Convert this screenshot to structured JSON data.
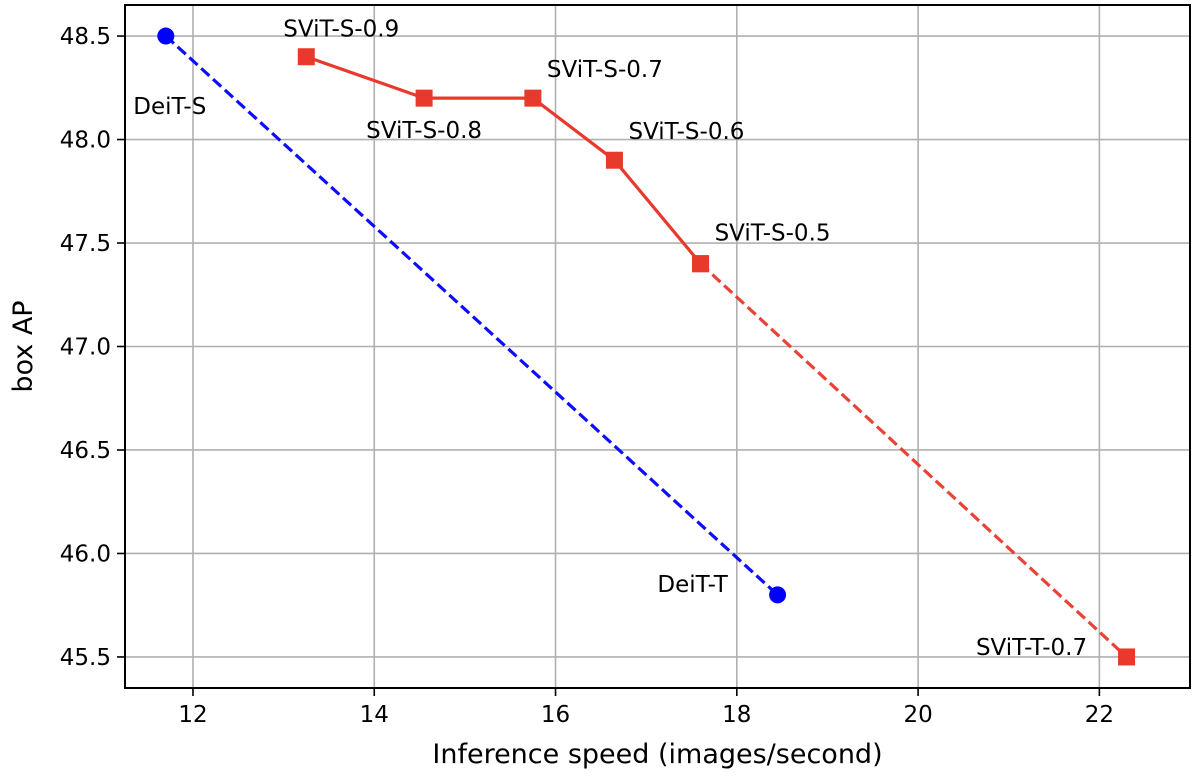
{
  "chart_data": {
    "type": "line",
    "xlabel": "Inference speed (images/second)",
    "ylabel": "box AP",
    "xlim": [
      11.25,
      23.0
    ],
    "ylim": [
      45.35,
      48.65
    ],
    "xticks": [
      12,
      14,
      16,
      18,
      20,
      22
    ],
    "yticks": [
      45.5,
      46.0,
      46.5,
      47.0,
      47.5,
      48.0,
      48.5
    ],
    "xtick_labels": [
      "12",
      "14",
      "16",
      "18",
      "20",
      "22"
    ],
    "ytick_labels": [
      "45.5",
      "46.0",
      "46.5",
      "47.0",
      "47.5",
      "48.0",
      "48.5"
    ],
    "grid": true,
    "legend": "none",
    "series": [
      {
        "color": "#0000ff",
        "marker": "circle",
        "line_style": "dashed",
        "points": [
          {
            "x": 11.7,
            "y": 48.5,
            "label": "DeiT-S"
          },
          {
            "x": 18.45,
            "y": 45.8,
            "label": "DeiT-T"
          }
        ]
      },
      {
        "color": "#e8392c",
        "marker": "square",
        "line_style": "solid",
        "points": [
          {
            "x": 13.25,
            "y": 48.4,
            "label": "SViT-S-0.9"
          },
          {
            "x": 14.55,
            "y": 48.2,
            "label": "SViT-S-0.8"
          },
          {
            "x": 15.75,
            "y": 48.2,
            "label": "SViT-S-0.7"
          },
          {
            "x": 16.65,
            "y": 47.9,
            "label": "SViT-S-0.6"
          },
          {
            "x": 17.6,
            "y": 47.4,
            "label": "SViT-S-0.5"
          }
        ]
      },
      {
        "color": "#e8392c",
        "marker": "square",
        "line_style": "dashed",
        "points": [
          {
            "x": 17.6,
            "y": 47.4,
            "label": ""
          },
          {
            "x": 22.3,
            "y": 45.5,
            "label": "SViT-T-0.7"
          }
        ]
      }
    ]
  }
}
